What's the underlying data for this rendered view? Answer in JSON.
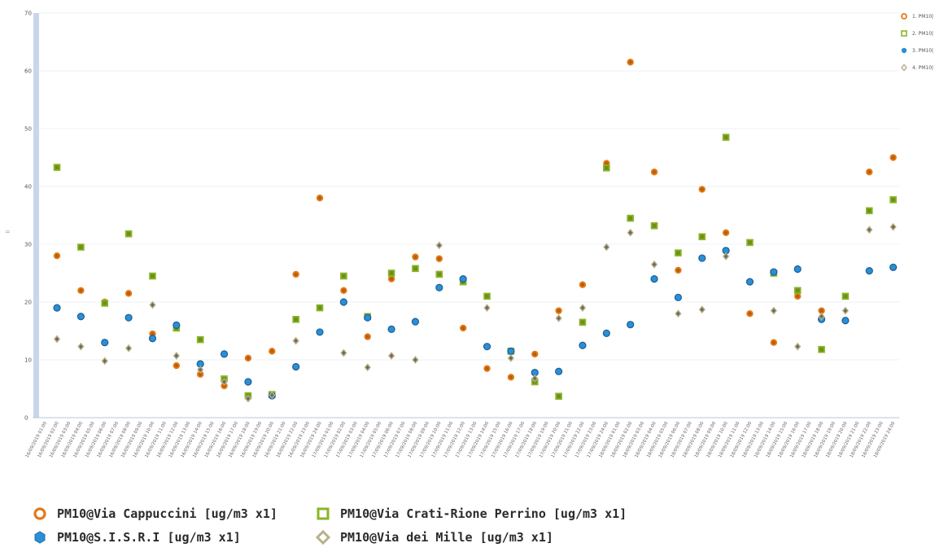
{
  "legend_items": [
    {
      "label": "PM10@Via Cappuccini [ug/m3 x1]",
      "short": "1. PM10|"
    },
    {
      "label": "PM10@Via Crati-Rione Perrino [ug/m3 x1]",
      "short": "2. PM10|"
    },
    {
      "label": "PM10@S.I.S.R.I [ug/m3 x1]",
      "short": "3. PM10|"
    },
    {
      "label": "PM10@Via dei Mille [ug/m3 x1]",
      "short": "4. PM10|"
    }
  ],
  "chart_data": {
    "type": "scatter",
    "title": "",
    "xlabel": "",
    "ylabel": "",
    "ylim": [
      0,
      70
    ],
    "yticks": [
      0,
      10,
      20,
      30,
      40,
      50,
      60,
      70
    ],
    "grid": true,
    "legend_position": "bottom",
    "x": [
      "16/09/2019 01:00",
      "16/09/2019 02:00",
      "16/09/2019 03:00",
      "16/09/2019 04:00",
      "16/09/2019 05:00",
      "16/09/2019 06:00",
      "16/09/2019 07:00",
      "16/09/2019 08:00",
      "16/09/2019 09:00",
      "16/09/2019 10:00",
      "16/09/2019 11:00",
      "16/09/2019 12:00",
      "16/09/2019 13:00",
      "16/09/2019 14:00",
      "16/09/2019 15:00",
      "16/09/2019 16:00",
      "16/09/2019 17:00",
      "16/09/2019 18:00",
      "16/09/2019 19:00",
      "16/09/2019 20:00",
      "16/09/2019 21:00",
      "16/09/2019 22:00",
      "16/09/2019 23:00",
      "16/09/2019 24:00",
      "17/09/2019 01:00",
      "17/09/2019 02:00",
      "17/09/2019 03:00",
      "17/09/2019 04:00",
      "17/09/2019 05:00",
      "17/09/2019 06:00",
      "17/09/2019 07:00",
      "17/09/2019 08:00",
      "17/09/2019 09:00",
      "17/09/2019 10:00",
      "17/09/2019 11:00",
      "17/09/2019 12:00",
      "17/09/2019 13:00",
      "17/09/2019 14:00",
      "17/09/2019 15:00",
      "17/09/2019 16:00",
      "17/09/2019 17:00",
      "17/09/2019 18:00",
      "17/09/2019 19:00",
      "17/09/2019 20:00",
      "17/09/2019 21:00",
      "17/09/2019 22:00",
      "17/09/2019 23:00",
      "17/09/2019 24:00",
      "18/09/2019 01:00",
      "18/09/2019 02:00",
      "18/09/2019 03:00",
      "18/09/2019 04:00",
      "18/09/2019 05:00",
      "18/09/2019 06:00",
      "18/09/2019 07:00",
      "18/09/2019 08:00",
      "18/09/2019 09:00",
      "18/09/2019 10:00",
      "18/09/2019 11:00",
      "18/09/2019 12:00",
      "18/09/2019 13:00",
      "18/09/2019 14:00",
      "18/09/2019 15:00",
      "18/09/2019 16:00",
      "18/09/2019 17:00",
      "18/09/2019 18:00",
      "18/09/2019 19:00",
      "18/09/2019 20:00",
      "18/09/2019 21:00",
      "18/09/2019 22:00",
      "18/09/2019 23:00",
      "18/09/2019 24:00"
    ],
    "series": [
      {
        "name": "PM10@Via Cappuccini [ug/m3 x1]",
        "color": "#e07b1a",
        "marker": "circle-ring",
        "points": [
          [
            1,
            28
          ],
          [
            3,
            22
          ],
          [
            5,
            20
          ],
          [
            7,
            21.5
          ],
          [
            9,
            14.5
          ],
          [
            11,
            9
          ],
          [
            13,
            7.5
          ],
          [
            15,
            5.5
          ],
          [
            17,
            10.3
          ],
          [
            19,
            11.5
          ],
          [
            21,
            24.8
          ],
          [
            23,
            38
          ],
          [
            25,
            22
          ],
          [
            27,
            14
          ],
          [
            29,
            24
          ],
          [
            31,
            27.8
          ],
          [
            33,
            27.5
          ],
          [
            35,
            15.5
          ],
          [
            37,
            8.5
          ],
          [
            39,
            7
          ],
          [
            41,
            11
          ],
          [
            43,
            18.5
          ],
          [
            45,
            23
          ],
          [
            47,
            44
          ],
          [
            49,
            61.5
          ],
          [
            51,
            42.5
          ],
          [
            53,
            25.5
          ],
          [
            55,
            39.5
          ],
          [
            57,
            32
          ],
          [
            59,
            18
          ],
          [
            61,
            13
          ],
          [
            63,
            21
          ],
          [
            65,
            18.5
          ],
          [
            69,
            42.5
          ],
          [
            71,
            45
          ]
        ]
      },
      {
        "name": "PM10@Via Crati-Rione Perrino [ug/m3 x1]",
        "color": "#8ab526",
        "marker": "square",
        "points": [
          [
            1,
            43.3
          ],
          [
            3,
            29.5
          ],
          [
            5,
            19.8
          ],
          [
            7,
            31.8
          ],
          [
            9,
            24.5
          ],
          [
            11,
            15.5
          ],
          [
            13,
            13.5
          ],
          [
            15,
            6.7
          ],
          [
            17,
            3.8
          ],
          [
            19,
            4
          ],
          [
            21,
            17
          ],
          [
            23,
            19
          ],
          [
            25,
            24.5
          ],
          [
            27,
            17.5
          ],
          [
            29,
            25
          ],
          [
            31,
            25.8
          ],
          [
            33,
            24.8
          ],
          [
            35,
            23.5
          ],
          [
            37,
            21
          ],
          [
            39,
            11.5
          ],
          [
            41,
            6.2
          ],
          [
            43,
            3.7
          ],
          [
            45,
            16.5
          ],
          [
            47,
            43.2
          ],
          [
            49,
            34.5
          ],
          [
            51,
            33.2
          ],
          [
            53,
            28.5
          ],
          [
            55,
            31.3
          ],
          [
            57,
            48.5
          ],
          [
            59,
            30.3
          ],
          [
            61,
            25
          ],
          [
            63,
            22
          ],
          [
            65,
            11.8
          ],
          [
            67,
            21
          ],
          [
            69,
            35.8
          ],
          [
            71,
            37.7
          ]
        ]
      },
      {
        "name": "PM10@S.I.S.R.I [ug/m3 x1]",
        "color": "#2a8fd6",
        "marker": "circle",
        "points": [
          [
            1,
            19
          ],
          [
            3,
            17.5
          ],
          [
            5,
            13
          ],
          [
            7,
            17.3
          ],
          [
            9,
            13.7
          ],
          [
            11,
            16
          ],
          [
            13,
            9.3
          ],
          [
            15,
            11
          ],
          [
            17,
            6.2
          ],
          [
            19,
            3.8
          ],
          [
            21,
            8.8
          ],
          [
            23,
            14.8
          ],
          [
            25,
            20
          ],
          [
            27,
            17.3
          ],
          [
            29,
            15.3
          ],
          [
            31,
            16.6
          ],
          [
            33,
            22.5
          ],
          [
            35,
            24
          ],
          [
            37,
            12.3
          ],
          [
            39,
            11.5
          ],
          [
            41,
            7.8
          ],
          [
            43,
            8
          ],
          [
            45,
            12.5
          ],
          [
            47,
            14.6
          ],
          [
            49,
            16.1
          ],
          [
            51,
            24
          ],
          [
            53,
            20.8
          ],
          [
            55,
            27.6
          ],
          [
            57,
            28.9
          ],
          [
            59,
            23.5
          ],
          [
            61,
            25.2
          ],
          [
            63,
            25.7
          ],
          [
            65,
            17
          ],
          [
            67,
            16.8
          ],
          [
            69,
            25.4
          ],
          [
            71,
            26
          ]
        ]
      },
      {
        "name": "PM10@Via dei Mille [ug/m3 x1]",
        "color": "#b9b08c",
        "marker": "diamond",
        "points": [
          [
            1,
            13.6
          ],
          [
            3,
            12.3
          ],
          [
            5,
            9.8
          ],
          [
            7,
            12
          ],
          [
            9,
            19.5
          ],
          [
            11,
            10.7
          ],
          [
            13,
            8.3
          ],
          [
            15,
            6.2
          ],
          [
            17,
            3.3
          ],
          [
            19,
            3.9
          ],
          [
            21,
            13.3
          ],
          [
            25,
            11.2
          ],
          [
            27,
            8.7
          ],
          [
            29,
            10.7
          ],
          [
            31,
            10
          ],
          [
            33,
            29.8
          ],
          [
            37,
            19
          ],
          [
            39,
            10.3
          ],
          [
            41,
            6.8
          ],
          [
            43,
            17.2
          ],
          [
            45,
            19
          ],
          [
            47,
            29.5
          ],
          [
            49,
            32
          ],
          [
            51,
            26.5
          ],
          [
            53,
            18
          ],
          [
            55,
            18.7
          ],
          [
            57,
            27.9
          ],
          [
            61,
            18.5
          ],
          [
            63,
            12.3
          ],
          [
            65,
            17.5
          ],
          [
            67,
            18.5
          ],
          [
            69,
            32.5
          ],
          [
            71,
            33
          ]
        ]
      }
    ]
  }
}
